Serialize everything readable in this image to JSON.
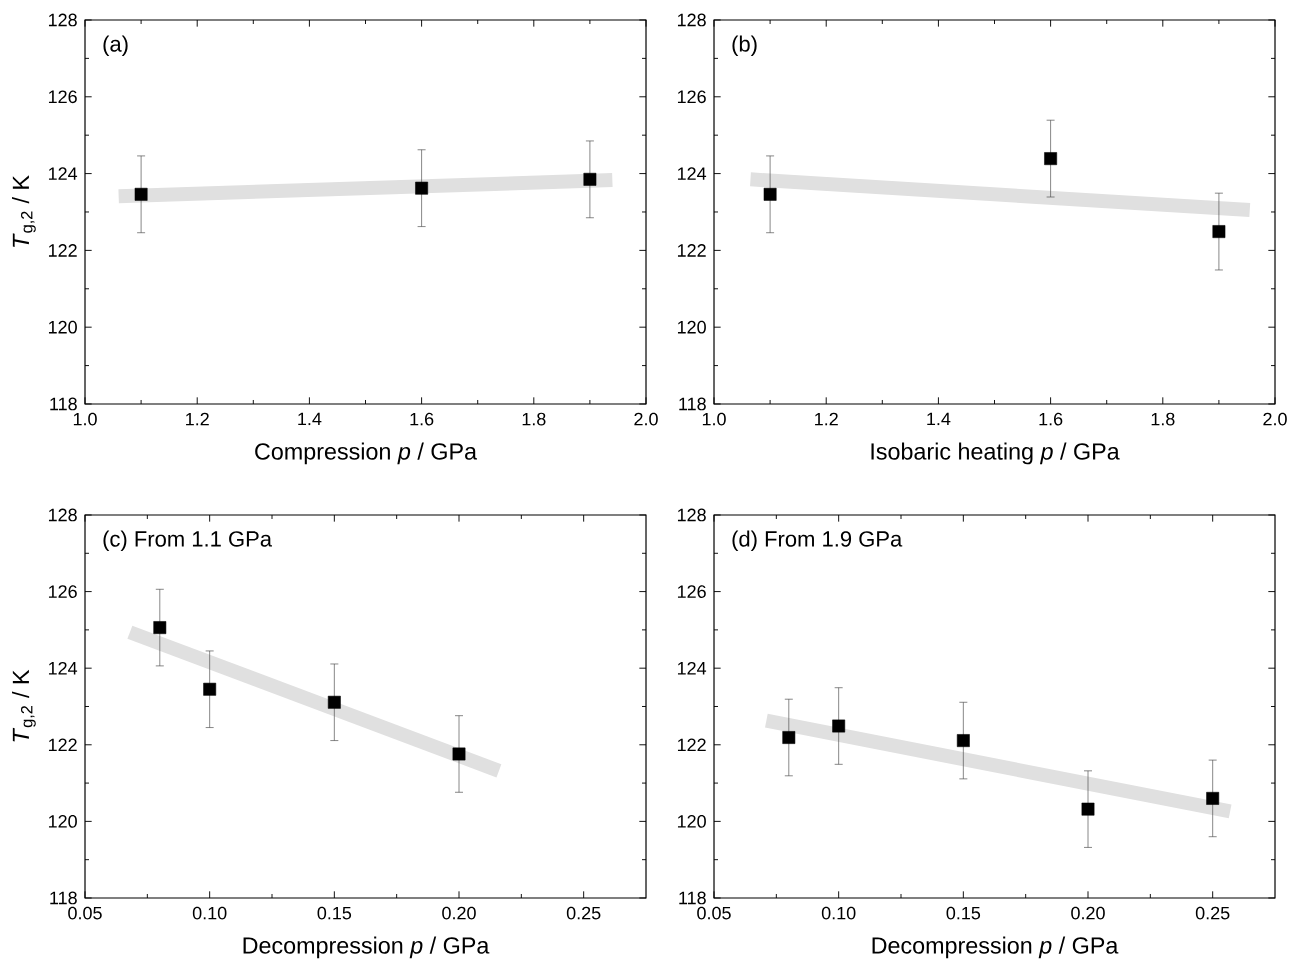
{
  "chart_data": [
    {
      "type": "scatter",
      "xlabel": "Compression *p* / GPa",
      "ylabel": "*T*$_{g,2}$ / K",
      "annotations": [
        "(a)"
      ],
      "xlim": [
        1.0,
        2.0
      ],
      "ylim": [
        118,
        128
      ],
      "xticks": [
        {
          "value": 1.0,
          "label": "1.0"
        },
        1.2,
        1.4,
        1.6,
        1.8,
        {
          "value": 2.0,
          "label": "2.0"
        }
      ],
      "yticks": [
        118,
        120,
        122,
        124,
        126,
        128
      ],
      "series": [
        {
          "type": "line",
          "marker": "none",
          "color": "#e0e0e0",
          "x": [
            1.06,
            1.94
          ],
          "values": [
            123.41,
            123.83
          ]
        },
        {
          "marker": "square",
          "color": "#000000",
          "x": [
            1.1,
            1.6,
            1.9
          ],
          "values": [
            123.46,
            123.62,
            123.85
          ],
          "errors": [
            1,
            1,
            1
          ]
        }
      ]
    },
    {
      "type": "scatter",
      "xlabel": "Isobaric heating *p* / GPa",
      "annotations": [
        "(b)"
      ],
      "xlim": [
        1.0,
        2.0
      ],
      "ylim": [
        118,
        128
      ],
      "xticks": [
        {
          "value": 1.0,
          "label": "1.0"
        },
        1.2,
        1.4,
        1.6,
        1.8,
        {
          "value": 2.0,
          "label": "2.0"
        }
      ],
      "yticks": [
        118,
        120,
        122,
        124,
        126,
        128
      ],
      "series": [
        {
          "type": "line",
          "marker": "none",
          "color": "#e0e0e0",
          "x": [
            1.065,
            1.955
          ],
          "values": [
            123.85,
            123.05
          ]
        },
        {
          "marker": "square",
          "color": "#000000",
          "x": [
            1.1,
            1.6,
            1.9
          ],
          "values": [
            123.46,
            124.39,
            122.49
          ],
          "errors": [
            1,
            1,
            1
          ]
        }
      ]
    },
    {
      "type": "scatter",
      "xlabel": "Decompression *p* / GPa",
      "ylabel": "*T*$_{g,2}$ / K",
      "annotations": [
        "(c) From 1.1 GPa"
      ],
      "xlim": [
        0.05,
        0.275
      ],
      "ylim": [
        118,
        128
      ],
      "xticks": [
        0.05,
        {
          "value": 0.1,
          "label": "0.10"
        },
        0.15,
        {
          "value": 0.2,
          "label": "0.20"
        },
        0.25
      ],
      "yticks": [
        118,
        120,
        122,
        124,
        126,
        128
      ],
      "series": [
        {
          "type": "line",
          "marker": "none",
          "color": "#e0e0e0",
          "x": [
            0.068,
            0.216
          ],
          "values": [
            124.94,
            121.32
          ]
        },
        {
          "marker": "square",
          "color": "#000000",
          "x": [
            0.08,
            0.1,
            0.15,
            0.2
          ],
          "values": [
            125.06,
            123.45,
            123.11,
            121.76
          ],
          "errors": [
            1,
            1,
            1,
            1
          ]
        }
      ]
    },
    {
      "type": "scatter",
      "xlabel": "Decompression *p* / GPa",
      "annotations": [
        "(d) From 1.9 GPa"
      ],
      "xlim": [
        0.05,
        0.275
      ],
      "ylim": [
        118,
        128
      ],
      "xticks": [
        0.05,
        {
          "value": 0.1,
          "label": "0.10"
        },
        0.15,
        {
          "value": 0.2,
          "label": "0.20"
        },
        0.25
      ],
      "yticks": [
        118,
        120,
        122,
        124,
        126,
        128
      ],
      "series": [
        {
          "type": "line",
          "marker": "none",
          "color": "#e0e0e0",
          "x": [
            0.071,
            0.257
          ],
          "values": [
            122.63,
            120.26
          ]
        },
        {
          "marker": "square",
          "color": "#000000",
          "x": [
            0.08,
            0.1,
            0.15,
            0.2,
            0.25
          ],
          "values": [
            122.19,
            122.49,
            122.11,
            120.32,
            120.6
          ],
          "errors": [
            1,
            1,
            1,
            1,
            1
          ]
        }
      ]
    }
  ]
}
